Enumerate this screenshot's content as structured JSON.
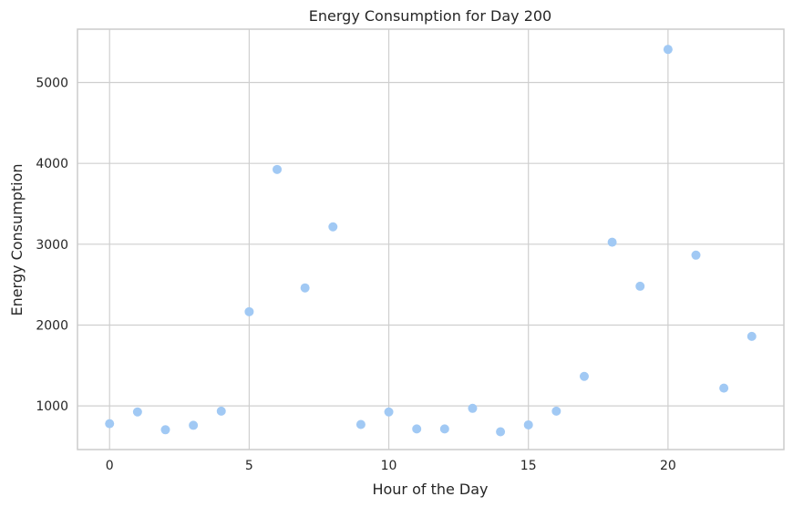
{
  "chart_data": {
    "type": "scatter",
    "title": "Energy Consumption for Day 200",
    "xlabel": "Hour of the Day",
    "ylabel": "Energy Consumption",
    "xlim": [
      -1.15,
      24.15
    ],
    "ylim": [
      460,
      5660
    ],
    "x_ticks": [
      0,
      5,
      10,
      15,
      20
    ],
    "y_ticks": [
      1000,
      2000,
      3000,
      4000,
      5000
    ],
    "grid": true,
    "marker_color": "#a1c9f4",
    "x": [
      0,
      1,
      2,
      3,
      4,
      5,
      6,
      7,
      8,
      9,
      10,
      11,
      12,
      13,
      14,
      15,
      16,
      17,
      18,
      19,
      20,
      21,
      22,
      23
    ],
    "y": [
      780,
      925,
      705,
      760,
      935,
      2165,
      3925,
      2460,
      3215,
      770,
      925,
      715,
      715,
      970,
      680,
      765,
      935,
      1365,
      3025,
      2480,
      5410,
      2865,
      1220,
      1860
    ]
  }
}
